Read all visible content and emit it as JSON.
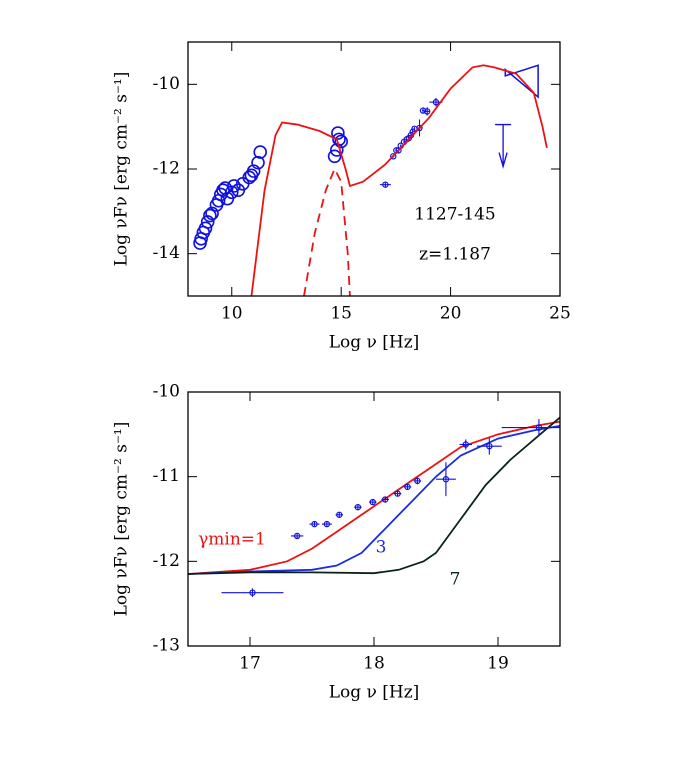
{
  "chart_data": [
    {
      "type": "sed",
      "x_label": "Log ν [Hz]",
      "y_label": "Log νFν [erg cm⁻² s⁻¹]",
      "xlim": [
        8,
        25
      ],
      "ylim": [
        -15,
        -9
      ],
      "xticks": [
        10,
        15,
        20,
        25
      ],
      "yticks": [
        -10,
        -12,
        -14
      ],
      "annotations": [
        "1127-145",
        "z=1.187"
      ],
      "series": [
        {
          "style": "open-circle",
          "color": "#1010e0",
          "x": [
            8.55,
            8.6,
            8.7,
            8.8,
            8.9,
            9.0,
            9.1,
            9.3,
            9.4,
            9.5,
            9.6,
            9.7,
            9.8,
            10.0,
            10.1,
            10.3,
            10.5,
            10.8,
            10.9,
            11.0,
            11.2,
            11.3,
            14.7,
            14.8,
            14.85,
            14.9,
            15.0
          ],
          "values": [
            -13.75,
            -13.65,
            -13.5,
            -13.4,
            -13.25,
            -13.1,
            -13.05,
            -12.85,
            -12.75,
            -12.6,
            -12.5,
            -12.45,
            -12.7,
            -12.55,
            -12.4,
            -12.5,
            -12.35,
            -12.2,
            -12.15,
            -12.05,
            -11.85,
            -11.6,
            -11.7,
            -11.55,
            -11.15,
            -11.3,
            -11.35
          ]
        },
        {
          "style": "errorbar",
          "color": "#1010e0",
          "x": [
            17.02,
            17.38,
            17.52,
            17.62,
            17.72,
            17.87,
            17.99,
            18.09,
            18.19,
            18.27,
            18.35,
            18.58,
            18.74,
            18.93,
            19.33
          ],
          "values": [
            -12.37,
            -11.7,
            -11.56,
            -11.56,
            -11.45,
            -11.36,
            -11.3,
            -11.27,
            -11.2,
            -11.12,
            -11.05,
            -11.03,
            -10.62,
            -10.64,
            -10.42
          ],
          "xerr": [
            0.25,
            0.05,
            0.04,
            0.04,
            0.03,
            0.03,
            0.03,
            0.03,
            0.03,
            0.03,
            0.03,
            0.08,
            0.05,
            0.1,
            0.3
          ],
          "yerr": [
            0.05,
            0.03,
            0.03,
            0.03,
            0.03,
            0.03,
            0.03,
            0.03,
            0.03,
            0.03,
            0.04,
            0.2,
            0.06,
            0.1,
            0.1
          ]
        },
        {
          "style": "upper-limit",
          "color": "#1010e0",
          "x": [
            22.4
          ],
          "values": [
            -10.95
          ]
        },
        {
          "style": "bowtie",
          "color": "#1010e0",
          "x": [
            22.5,
            24.0
          ],
          "values": [
            -9.65,
            -9.55
          ],
          "values_low": [
            -9.8,
            -10.3
          ]
        },
        {
          "style": "line",
          "color": "#ee1111",
          "x": [
            10.9,
            11.5,
            12.0,
            12.3,
            13.0,
            14.0,
            14.8,
            15.2,
            15.4,
            16.0,
            17.0,
            18.0,
            19.0,
            20.0,
            21.0,
            21.5,
            22.0,
            23.0,
            23.8,
            24.2,
            24.4
          ],
          "values": [
            -15,
            -12.5,
            -11.2,
            -10.9,
            -10.95,
            -11.1,
            -11.3,
            -12.0,
            -12.4,
            -12.3,
            -11.9,
            -11.35,
            -10.8,
            -10.1,
            -9.6,
            -9.55,
            -9.6,
            -9.75,
            -10.2,
            -11.0,
            -11.5
          ]
        },
        {
          "style": "dashed",
          "color": "#ee1111",
          "x": [
            13.3,
            13.8,
            14.3,
            14.7,
            15.0,
            15.3,
            15.4
          ],
          "values": [
            -15,
            -13.5,
            -12.5,
            -12.0,
            -12.3,
            -14.0,
            -15
          ]
        }
      ]
    },
    {
      "type": "sed",
      "x_label": "Log ν [Hz]",
      "y_label": "Log νFν [erg cm⁻² s⁻¹]",
      "xlim": [
        16.5,
        19.5
      ],
      "ylim": [
        -13,
        -10
      ],
      "xticks": [
        17,
        18,
        19
      ],
      "yticks": [
        -10,
        -11,
        -12,
        -13
      ],
      "annotations": [],
      "series": [
        {
          "style": "line",
          "color": "#ee1111",
          "name": "γmin=1",
          "x": [
            16.5,
            17.0,
            17.3,
            17.5,
            17.7,
            17.9,
            18.1,
            18.3,
            18.5,
            18.7,
            19.0,
            19.3,
            19.5
          ],
          "values": [
            -12.15,
            -12.1,
            -12.0,
            -11.85,
            -11.65,
            -11.45,
            -11.25,
            -11.05,
            -10.85,
            -10.65,
            -10.5,
            -10.4,
            -10.35
          ]
        },
        {
          "style": "line",
          "color": "#1a2ee0",
          "name": "3",
          "x": [
            16.5,
            17.0,
            17.5,
            17.7,
            17.9,
            18.1,
            18.3,
            18.5,
            18.7,
            19.0,
            19.3,
            19.5
          ],
          "values": [
            -12.15,
            -12.12,
            -12.1,
            -12.05,
            -11.9,
            -11.6,
            -11.3,
            -11.0,
            -10.75,
            -10.55,
            -10.45,
            -10.4
          ]
        },
        {
          "style": "line",
          "color": "#0a2418",
          "name": "7",
          "x": [
            16.5,
            17.0,
            17.5,
            18.0,
            18.2,
            18.4,
            18.5,
            18.7,
            18.9,
            19.1,
            19.3,
            19.5
          ],
          "values": [
            -12.15,
            -12.13,
            -12.13,
            -12.14,
            -12.1,
            -12.0,
            -11.9,
            -11.5,
            -11.1,
            -10.8,
            -10.55,
            -10.3
          ]
        },
        {
          "style": "errorbar",
          "color": "#1010e0",
          "x": [
            17.02,
            17.38,
            17.52,
            17.62,
            17.72,
            17.87,
            17.99,
            18.09,
            18.19,
            18.27,
            18.35,
            18.58,
            18.74,
            18.93,
            19.33
          ],
          "values": [
            -12.37,
            -11.7,
            -11.56,
            -11.56,
            -11.45,
            -11.36,
            -11.3,
            -11.27,
            -11.2,
            -11.12,
            -11.05,
            -11.03,
            -10.62,
            -10.64,
            -10.42
          ],
          "xerr": [
            0.25,
            0.05,
            0.04,
            0.04,
            0.03,
            0.03,
            0.03,
            0.03,
            0.03,
            0.03,
            0.03,
            0.08,
            0.05,
            0.1,
            0.3
          ],
          "yerr": [
            0.05,
            0.03,
            0.03,
            0.03,
            0.03,
            0.03,
            0.03,
            0.03,
            0.03,
            0.03,
            0.04,
            0.2,
            0.06,
            0.1,
            0.1
          ]
        }
      ]
    }
  ]
}
